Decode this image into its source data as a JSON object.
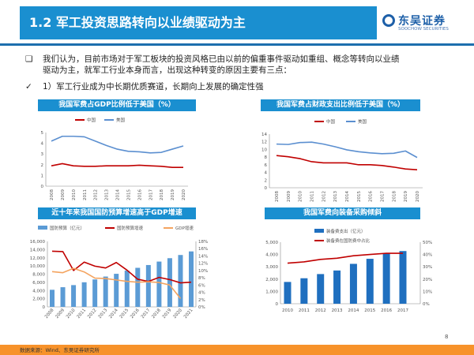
{
  "header": {
    "title": "1.2 军工投资思路转向以业绩驱动为主",
    "logo_cn": "东吴证券",
    "logo_en": "SOOCHOW SECURITIES"
  },
  "body": {
    "bullet1": "我们认为，目前市场对于军工板块的投资风格已由以前的偏重事件驱动如重组、概念等转向以业绩",
    "bullet1b": "驱动为主，就军工行业本身而言，出现这种转变的原因主要有三点：",
    "check1": "1）军工行业成为中长期优质赛道，长期向上发展的确定性强"
  },
  "colors": {
    "accent": "#1a8fd0",
    "red": "#c00000",
    "blue_line": "#5b8fd0",
    "bar1": "#5b9bd5",
    "bar2": "#1f6fbf",
    "orange": "#f4a460",
    "footer": "#f7922a"
  },
  "chart_data": [
    {
      "type": "line",
      "title": "我国军费占GDP比例低于美国（%）",
      "categories": [
        "2008",
        "2009",
        "2010",
        "2011",
        "2012",
        "2013",
        "2014",
        "2015",
        "2016",
        "2017",
        "2018",
        "2019",
        "2020"
      ],
      "ylim": [
        0,
        5
      ],
      "yticks": [
        "0",
        "1",
        "2",
        "3",
        "4",
        "5"
      ],
      "legend": "top",
      "series": [
        {
          "name": "中国",
          "values": [
            1.9,
            2.1,
            1.9,
            1.85,
            1.85,
            1.9,
            1.9,
            1.9,
            1.95,
            1.9,
            1.85,
            1.75,
            1.75
          ]
        },
        {
          "name": "美国",
          "values": [
            4.2,
            4.65,
            4.65,
            4.6,
            4.2,
            3.8,
            3.45,
            3.25,
            3.2,
            3.1,
            3.15,
            3.45,
            3.75
          ]
        }
      ]
    },
    {
      "type": "line",
      "title": "我国军费占财政支出比例低于美国（%）",
      "categories": [
        "2008",
        "2009",
        "2010",
        "2011",
        "2012",
        "2013",
        "2014",
        "2015",
        "2016",
        "2017",
        "2018",
        "2019",
        "2020"
      ],
      "ylim": [
        0,
        14
      ],
      "yticks": [
        "0",
        "2",
        "4",
        "6",
        "8",
        "10",
        "12",
        "14"
      ],
      "legend": "top",
      "series": [
        {
          "name": "中国",
          "values": [
            8.4,
            8.1,
            7.6,
            6.8,
            6.5,
            6.5,
            6.5,
            6.0,
            6.0,
            5.8,
            5.4,
            4.9,
            4.7
          ]
        },
        {
          "name": "美国",
          "values": [
            11.4,
            11.3,
            11.8,
            11.9,
            11.4,
            10.7,
            9.9,
            9.4,
            9.1,
            8.9,
            9.0,
            9.6,
            7.9
          ]
        }
      ]
    },
    {
      "type": "bar+line",
      "title": "近十年来我国国防预算增速高于GDP增速",
      "categories": [
        "2008",
        "2009",
        "2010",
        "2011",
        "2012",
        "2013",
        "2014",
        "2015",
        "2016",
        "2017",
        "2018",
        "2019",
        "2020",
        "2021"
      ],
      "ylim": [
        0,
        16000
      ],
      "yticks": [
        "0",
        "2,000",
        "4,000",
        "6,000",
        "8,000",
        "10,000",
        "12,000",
        "14,000",
        "16,000"
      ],
      "y2lim": [
        0,
        18
      ],
      "y2ticks": [
        "0%",
        "2%",
        "4%",
        "6%",
        "8%",
        "10%",
        "12%",
        "14%",
        "16%",
        "18%"
      ],
      "legend": "top",
      "series": [
        {
          "name": "国防预算（亿元）",
          "axis": "left",
          "values": [
            4178,
            4807,
            5321,
            6011,
            6703,
            7410,
            8082,
            8869,
            9544,
            10226,
            11070,
            11899,
            12680,
            13553
          ]
        },
        {
          "name": "国防预算增速",
          "axis": "right",
          "values": [
            15.3,
            15.2,
            10.0,
            12.3,
            11.2,
            10.7,
            12.2,
            10.1,
            7.6,
            7.0,
            8.1,
            7.5,
            6.6,
            6.8
          ]
        },
        {
          "name": "GDP增速",
          "axis": "right",
          "values": [
            9.7,
            9.4,
            10.6,
            9.6,
            7.9,
            7.8,
            7.4,
            7.0,
            6.8,
            6.9,
            6.7,
            6.0,
            2.3,
            null
          ]
        }
      ]
    },
    {
      "type": "bar+line",
      "title": "我国军费向装备采购倾斜",
      "categories": [
        "2010",
        "2011",
        "2012",
        "2013",
        "2014",
        "2015",
        "2016",
        "2017"
      ],
      "ylim": [
        0,
        5000
      ],
      "yticks": [
        "0",
        "1,000",
        "2,000",
        "3,000",
        "4,000",
        "5,000"
      ],
      "y2lim": [
        0,
        50
      ],
      "y2ticks": [
        "0%",
        "10%",
        "20%",
        "30%",
        "40%",
        "50%"
      ],
      "legend": "top",
      "series": [
        {
          "name": "装备费支出（亿元）",
          "axis": "left",
          "values": [
            1770,
            2070,
            2410,
            2700,
            3240,
            3650,
            4100,
            4280
          ]
        },
        {
          "name": "装备费在国防费中占比",
          "axis": "right",
          "values": [
            33,
            34,
            36,
            37,
            39,
            40,
            41,
            41
          ]
        }
      ]
    }
  ],
  "footer": {
    "source": "数据来源：Wind、东吴证券研究所",
    "page": "8"
  }
}
